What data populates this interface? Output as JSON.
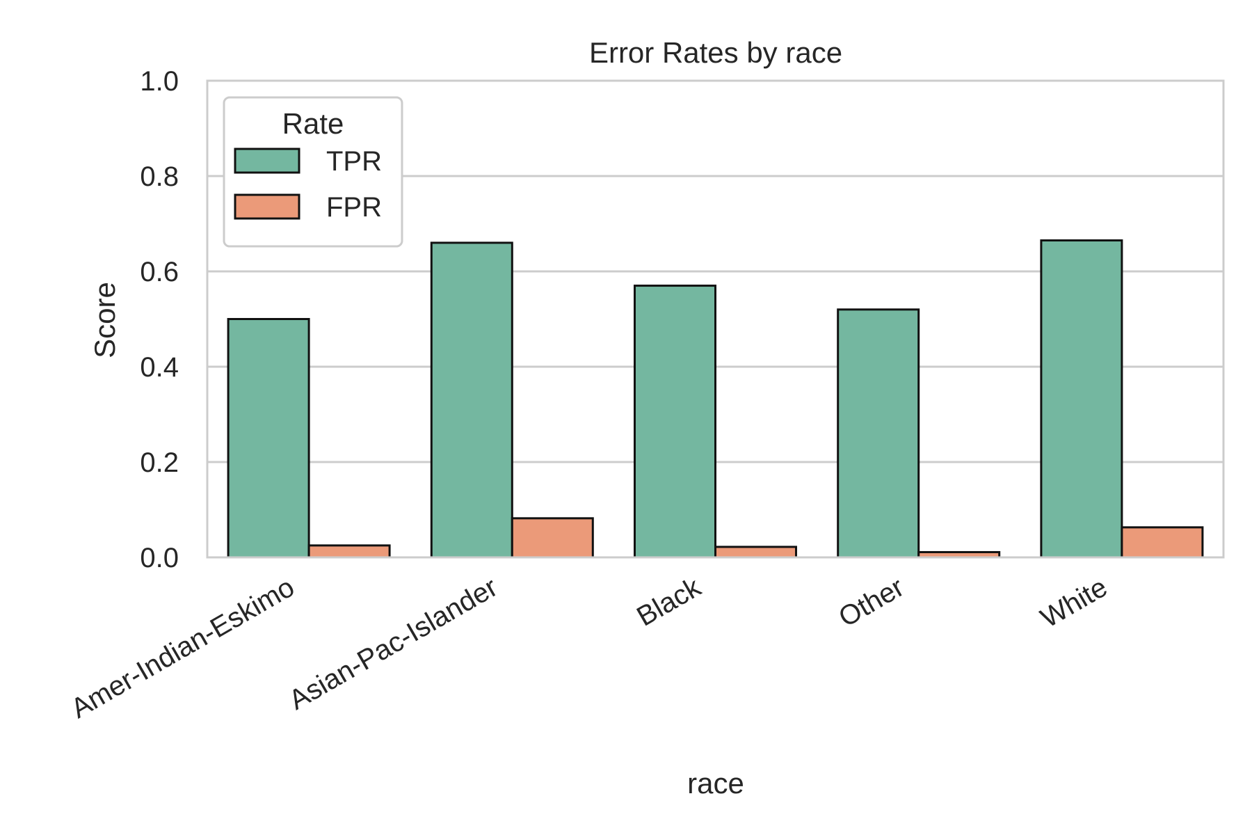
{
  "chart_data": {
    "type": "bar",
    "title": "Error Rates by race",
    "xlabel": "race",
    "ylabel": "Score",
    "ylim": [
      0,
      1.0
    ],
    "yticks": [
      "0.0",
      "0.2",
      "0.4",
      "0.6",
      "0.8",
      "1.0"
    ],
    "grid": true,
    "legend": {
      "title": "Rate",
      "placement": "top-left"
    },
    "categories": [
      "Amer-Indian-Eskimo",
      "Asian-Pac-Islander",
      "Black",
      "Other",
      "White"
    ],
    "series": [
      {
        "name": "TPR",
        "color": "#74b7a0",
        "values": [
          0.5,
          0.66,
          0.57,
          0.52,
          0.665
        ]
      },
      {
        "name": "FPR",
        "color": "#eb9a79",
        "values": [
          0.025,
          0.082,
          0.022,
          0.011,
          0.063
        ]
      }
    ]
  }
}
